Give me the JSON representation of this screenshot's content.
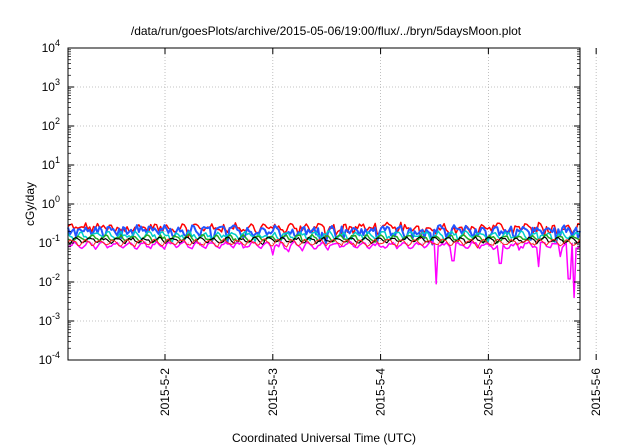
{
  "chart_data": {
    "type": "line",
    "title": "/data/run/goesPlots/archive/2015-05-06/19:00/flux/../bryn/5daysMoon.plot",
    "xlabel": "Coordinated Universal Time (UTC)",
    "ylabel": "cGy/day",
    "yscale": "log",
    "ylim_exponents": [
      -4,
      4
    ],
    "y_tick_exponents": [
      -4,
      -3,
      -2,
      -1,
      0,
      1,
      2,
      3,
      4
    ],
    "x_tick_labels": [
      "2015-5-2",
      "2015-5-3",
      "2015-5-4",
      "2015-5-5",
      "2015-5-6"
    ],
    "x_range_days": [
      1.1,
      5.85
    ],
    "x_ticks_days": [
      2,
      3,
      4,
      5,
      6
    ],
    "grid": true,
    "legend": "none",
    "series": [
      {
        "color": "#ff0000",
        "base": 0.25,
        "amp": 0.35,
        "lw": 1.5
      },
      {
        "color": "#2255ff",
        "base": 0.21,
        "amp": 0.4,
        "lw": 2.0
      },
      {
        "color": "#00cccc",
        "base": 0.16,
        "amp": 0.2,
        "lw": 1.5
      },
      {
        "color": "#22aa22",
        "base": 0.135,
        "amp": 0.12,
        "lw": 1.5
      },
      {
        "color": "#000000",
        "base": 0.12,
        "amp": 0.1,
        "lw": 1.2
      },
      {
        "color": "#ff00ff",
        "base": 0.09,
        "amp": 0.15,
        "lw": 1.5
      },
      {
        "color": "#ff2222",
        "base": 0.105,
        "amp": 0.12,
        "lw": 1.0
      }
    ],
    "dips": [
      {
        "series": 5,
        "x": 4.52,
        "value": 0.009
      },
      {
        "series": 5,
        "x": 4.67,
        "value": 0.035
      },
      {
        "series": 5,
        "x": 5.11,
        "value": 0.03
      },
      {
        "series": 5,
        "x": 5.46,
        "value": 0.025
      },
      {
        "series": 5,
        "x": 5.67,
        "value": 0.045
      },
      {
        "series": 5,
        "x": 5.75,
        "value": 0.012
      },
      {
        "series": 5,
        "x": 5.79,
        "value": 0.004
      },
      {
        "series": 5,
        "x": 3.0,
        "value": 0.05
      },
      {
        "series": 5,
        "x": 3.15,
        "value": 0.06
      }
    ]
  }
}
